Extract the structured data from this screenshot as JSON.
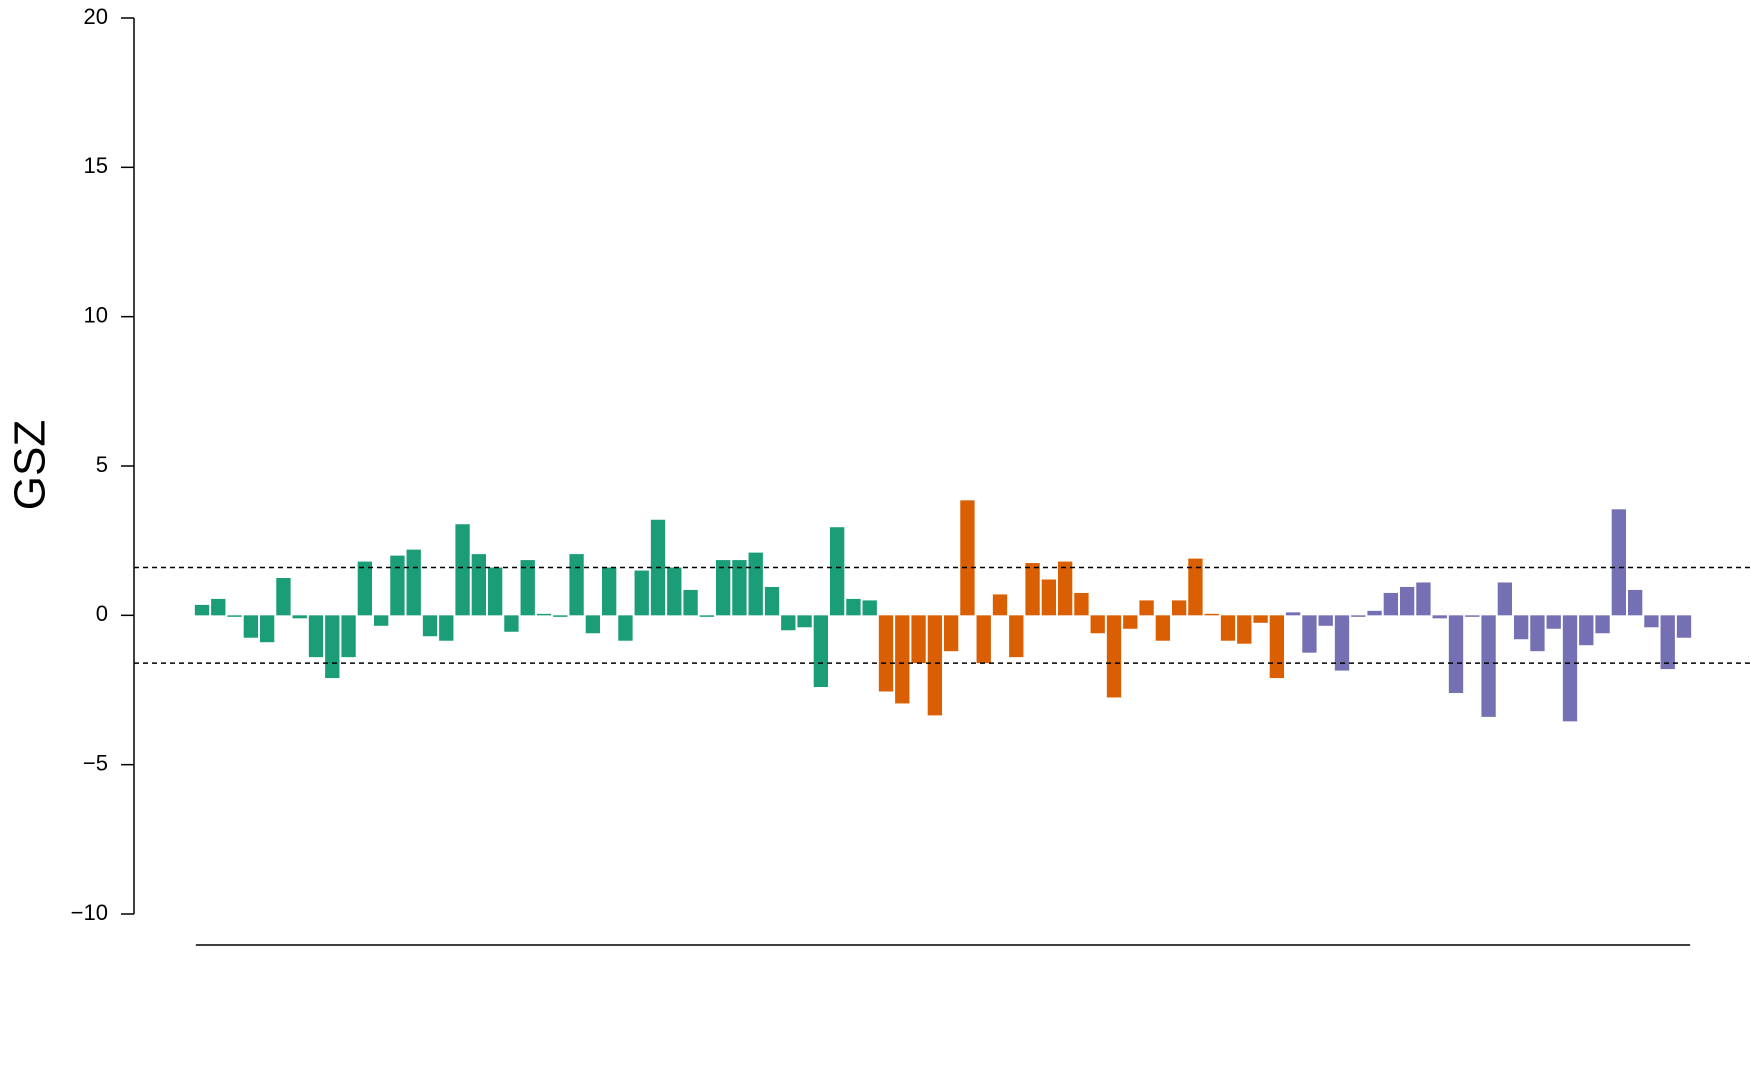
{
  "chart_data": {
    "type": "bar",
    "y_label": "GSZ",
    "categories": [
      null,
      null,
      null,
      null,
      null,
      null,
      null,
      null,
      null,
      null,
      null,
      null,
      null,
      null,
      null,
      null,
      null,
      null,
      null,
      null,
      null,
      null,
      null,
      null,
      null,
      null,
      null,
      null,
      null,
      null,
      null,
      null,
      null,
      null,
      null,
      null,
      null,
      null,
      null,
      null,
      null,
      null,
      null,
      null,
      null,
      null,
      null,
      null,
      null,
      null,
      null,
      null,
      null,
      null,
      null,
      null,
      null,
      null,
      null,
      null,
      null,
      null,
      null,
      null,
      null,
      null,
      null,
      null,
      null,
      null,
      null,
      null,
      null,
      null,
      null,
      null,
      null,
      null,
      null,
      null,
      null,
      null,
      null,
      null,
      null,
      null,
      null,
      null,
      null,
      null,
      null,
      null
    ],
    "values": [
      0.35,
      0.55,
      -0.05,
      -0.75,
      -0.9,
      1.25,
      -0.1,
      -1.4,
      -2.1,
      -1.4,
      1.8,
      -0.35,
      2.0,
      2.2,
      -0.7,
      -0.85,
      3.05,
      2.05,
      1.6,
      -0.55,
      1.85,
      0.05,
      -0.02,
      2.05,
      -0.6,
      1.6,
      -0.85,
      1.5,
      3.2,
      1.6,
      0.85,
      -0.05,
      1.85,
      1.85,
      2.1,
      0.95,
      -0.5,
      -0.4,
      -2.4,
      2.95,
      0.55,
      0.5,
      -2.55,
      -2.95,
      -1.6,
      -3.35,
      -1.2,
      3.85,
      -1.6,
      0.7,
      -1.4,
      1.75,
      1.2,
      1.8,
      0.75,
      -0.6,
      -2.75,
      -0.45,
      0.5,
      -0.85,
      0.5,
      1.9,
      0.05,
      -0.85,
      -0.95,
      -0.25,
      -2.1,
      0.1,
      -1.25,
      -0.35,
      -1.85,
      -0.05,
      0.15,
      0.75,
      0.95,
      1.1,
      -0.1,
      -2.6,
      -0.02,
      -3.4,
      1.1,
      -0.8,
      -1.2,
      -0.45,
      -3.55,
      -1.0,
      -0.6,
      3.55,
      0.85,
      -0.4,
      -1.8,
      -0.75
    ],
    "colors": [
      "#1b9e77",
      "#1b9e77",
      "#1b9e77",
      "#1b9e77",
      "#1b9e77",
      "#1b9e77",
      "#1b9e77",
      "#1b9e77",
      "#1b9e77",
      "#1b9e77",
      "#1b9e77",
      "#1b9e77",
      "#1b9e77",
      "#1b9e77",
      "#1b9e77",
      "#1b9e77",
      "#1b9e77",
      "#1b9e77",
      "#1b9e77",
      "#1b9e77",
      "#1b9e77",
      "#1b9e77",
      "#1b9e77",
      "#1b9e77",
      "#1b9e77",
      "#1b9e77",
      "#1b9e77",
      "#1b9e77",
      "#1b9e77",
      "#1b9e77",
      "#1b9e77",
      "#1b9e77",
      "#1b9e77",
      "#1b9e77",
      "#1b9e77",
      "#1b9e77",
      "#1b9e77",
      "#1b9e77",
      "#1b9e77",
      "#1b9e77",
      "#1b9e77",
      "#1b9e77",
      "#d95f02",
      "#d95f02",
      "#d95f02",
      "#d95f02",
      "#d95f02",
      "#d95f02",
      "#d95f02",
      "#d95f02",
      "#d95f02",
      "#d95f02",
      "#d95f02",
      "#d95f02",
      "#d95f02",
      "#d95f02",
      "#d95f02",
      "#d95f02",
      "#d95f02",
      "#d95f02",
      "#d95f02",
      "#d95f02",
      "#d95f02",
      "#d95f02",
      "#d95f02",
      "#d95f02",
      "#d95f02",
      "#7570b3",
      "#7570b3",
      "#7570b3",
      "#7570b3",
      "#7570b3",
      "#7570b3",
      "#7570b3",
      "#7570b3",
      "#7570b3",
      "#7570b3",
      "#7570b3",
      "#7570b3",
      "#7570b3",
      "#7570b3",
      "#7570b3",
      "#7570b3",
      "#7570b3",
      "#7570b3",
      "#7570b3",
      "#7570b3",
      "#7570b3",
      "#7570b3",
      "#7570b3",
      "#7570b3",
      "#7570b3"
    ],
    "ylim": [
      -10,
      20
    ],
    "yticks": [
      {
        "value": -10,
        "label": "−10"
      },
      {
        "value": -5,
        "label": "−5"
      },
      0,
      5,
      10,
      15,
      20
    ],
    "reference_lines": [
      1.6,
      -1.6
    ],
    "grid": false
  }
}
